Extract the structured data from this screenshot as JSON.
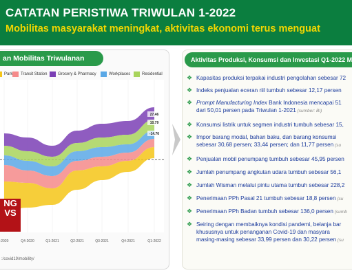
{
  "header": {
    "title": "CATATAN PERISTIWA TRIWULAN 1-2022",
    "subtitle": "Mobilitas masyarakat meningkat, aktivitas ekonomi terus menguat"
  },
  "left": {
    "tab_label": "an Mobilitas Triwulanan",
    "source": ":/covid19/mobility/",
    "news_logo_lines": [
      "NG",
      "VS"
    ]
  },
  "chart_data": {
    "type": "area",
    "categories": [
      "-2020",
      "Q4-2020",
      "Q1-2021",
      "Q2-2021",
      "Q3-2021",
      "Q4-2021",
      "Q1-2022"
    ],
    "series": [
      {
        "name": "Park",
        "color": "#f5c518"
      },
      {
        "name": "Transit Station",
        "color": "#f58a8a"
      },
      {
        "name": "Grocery & Pharmacy",
        "color": "#7b3fb5"
      },
      {
        "name": "Workplaces",
        "color": "#5aa8e6"
      },
      {
        "name": "Residential",
        "color": "#a8d45c"
      }
    ],
    "labels": [
      "27.46",
      "10.79",
      "-14.76"
    ]
  },
  "right": {
    "tab_label": "Aktivitas Produksi, Konsumsi dan Investasi Q1-2022 M",
    "bullets": [
      {
        "text": "Kapasitas produksi terpakai industri pengolahan sebesar 72"
      },
      {
        "text": "Indeks penjualan eceran riil tumbuh sebesar 12,17 persen"
      },
      {
        "italic": "Prompt Manufacturing Index",
        "text": " Bank Indonesia mencapai 51",
        "line2": "dari 50,01 persen pada Triwulan 1-2021",
        "note": "(sumber: BI)"
      },
      {
        "text": "Konsumsi listrik untuk segmen industri tumbuh sebesar 15,"
      },
      {
        "text": "Impor barang modal, bahan baku, dan barang konsumsi",
        "line2": "sebesar 30,68 persen;  33,44 persen; dan 11,77 persen",
        "note": "(su"
      },
      {
        "text": "Penjualan mobil penumpang tumbuh sebesar 45,95 persen"
      },
      {
        "text": "Jumlah penumpang angkutan udara tumbuh sebesar 56,1"
      },
      {
        "text": "Jumlah Wisman melalui pintu utama tumbuh sebesar 228,2"
      },
      {
        "text": "Penerimaan PPh Pasal 21 tumbuh sebesar 18,8 persen",
        "note": "(su"
      },
      {
        "text": "Penerimaan PPh Badan tumbuh sebesar 136,0 persen",
        "note": "(sumb"
      },
      {
        "text": "Seiring dengan membaiknya kondisi pandemi, belanja bar",
        "line2": "khususnya untuk penanganan Covid-19 dan masyara",
        "line3": "masing-masing sebesar 33,99 persen dan 30,22 persen",
        "note": "(su"
      }
    ]
  }
}
